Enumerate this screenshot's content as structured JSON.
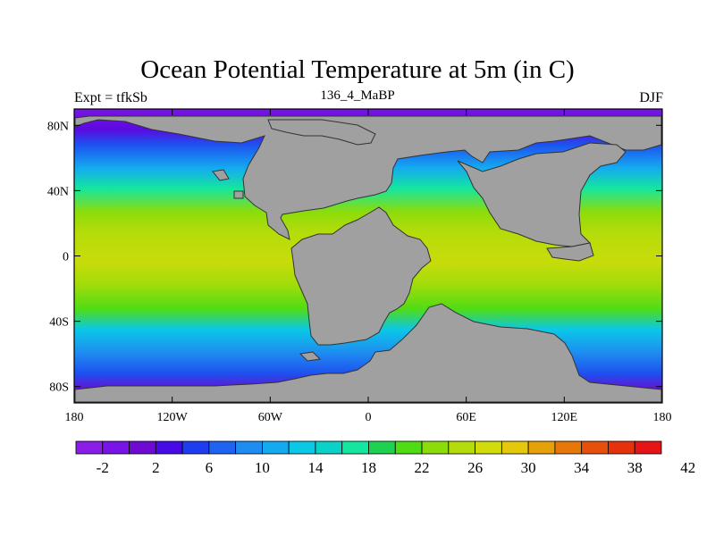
{
  "title": "Ocean Potential Temperature at 5m (in C)",
  "subtitle_left": "Expt = tfkSb",
  "subtitle_center": "136_4_MaBP",
  "subtitle_right": "DJF",
  "map": {
    "lon_range": [
      -180,
      180
    ],
    "lat_range": [
      -90,
      90
    ],
    "land_color": "#a0a0a0",
    "x_ticks": [
      {
        "value": -180,
        "label": "180"
      },
      {
        "value": -120,
        "label": "120W"
      },
      {
        "value": -60,
        "label": "60W"
      },
      {
        "value": 0,
        "label": "0"
      },
      {
        "value": 60,
        "label": "60E"
      },
      {
        "value": 120,
        "label": "120E"
      },
      {
        "value": 180,
        "label": "180"
      }
    ],
    "y_ticks": [
      {
        "value": 80,
        "label": "80N"
      },
      {
        "value": 40,
        "label": "40N"
      },
      {
        "value": 0,
        "label": "0"
      },
      {
        "value": -40,
        "label": "40S"
      },
      {
        "value": -80,
        "label": "80S"
      }
    ]
  },
  "colorbar": {
    "colors": [
      "#8a1ee6",
      "#7814e6",
      "#6e0ad2",
      "#460ae6",
      "#1e3cf0",
      "#1e64f0",
      "#1e8cf0",
      "#14aaf0",
      "#0ac8e6",
      "#0ad2c8",
      "#14e6a0",
      "#1ed250",
      "#50dc14",
      "#8cdc0a",
      "#b4dc0a",
      "#d2dc0a",
      "#e6c80a",
      "#e6a00a",
      "#e6780a",
      "#e6500a",
      "#e6320a",
      "#e61414"
    ],
    "labels": [
      "-2",
      "2",
      "6",
      "10",
      "14",
      "18",
      "22",
      "26",
      "30",
      "34",
      "38",
      "42"
    ]
  }
}
